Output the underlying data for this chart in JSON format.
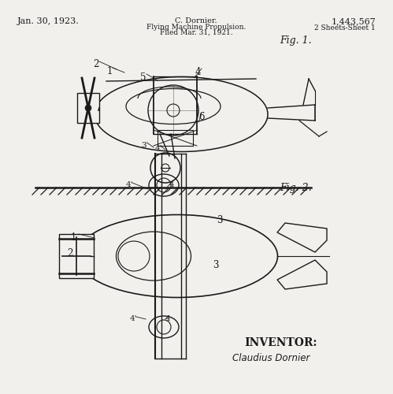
{
  "bg_color": "#f2f0ed",
  "title_left": "Jan. 30, 1923.",
  "title_center_line1": "C. Dornier.",
  "title_center_line2": "Flying Machine Propulsion.",
  "title_center_line3": "Filed Mar. 31, 1921.",
  "title_right": "1,443,567",
  "title_right2": "2 Sheets-Sheet 1",
  "fig1_label": "Fig. 1.",
  "fig2_label": "Fig. 2.",
  "inventor_label": "INVENTOR:",
  "inventor_sig": "Claudius Dornier",
  "ink_color": "#1a1a1a"
}
